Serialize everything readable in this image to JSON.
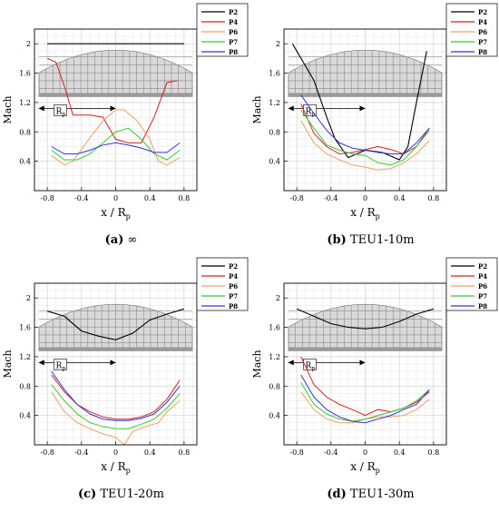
{
  "figure": {
    "panels": [
      {
        "tag": "(a)",
        "label": "∞"
      },
      {
        "tag": "(b)",
        "label": "TEU1-10m"
      },
      {
        "tag": "(c)",
        "label": "TEU1-20m"
      },
      {
        "tag": "(d)",
        "label": "TEU1-30m"
      }
    ],
    "ylabel": "Mach",
    "xlabel_main": "x / R",
    "xlabel_sub": "p",
    "rp_main": "R",
    "rp_sub": "p",
    "xticks": [
      "-0.8",
      "-0.4",
      "0",
      "0.4",
      "0.8"
    ],
    "yticks": [
      "0.4",
      "0.8",
      "1.2",
      "1.6",
      "2"
    ]
  },
  "colors": {
    "P2": "#000000",
    "P4": "#d62020",
    "P6": "#f2a060",
    "P7": "#33cc33",
    "P8": "#3333dd"
  },
  "chart_data": [
    {
      "type": "line",
      "title": "(a) ∞",
      "xlabel": "x / Rp",
      "ylabel": "Mach",
      "xlim": [
        -0.95,
        0.95
      ],
      "ylim": [
        0,
        2.2
      ],
      "legend": "top-right",
      "series": [
        {
          "name": "P2",
          "x": [
            -0.8,
            0.8
          ],
          "y": [
            2.0,
            2.0
          ]
        },
        {
          "name": "P4",
          "x": [
            -0.8,
            -0.7,
            -0.6,
            -0.5,
            -0.3,
            -0.15,
            0,
            0.15,
            0.3,
            0.45,
            0.6,
            0.72
          ],
          "y": [
            1.8,
            1.75,
            1.42,
            1.03,
            1.03,
            1.0,
            0.7,
            0.65,
            0.65,
            1.0,
            1.47,
            1.5
          ]
        },
        {
          "name": "P6",
          "x": [
            -0.75,
            -0.6,
            -0.5,
            -0.3,
            -0.15,
            0,
            0.1,
            0.25,
            0.4,
            0.5,
            0.6,
            0.75
          ],
          "y": [
            0.48,
            0.35,
            0.4,
            0.72,
            0.95,
            1.1,
            1.1,
            0.95,
            0.7,
            0.4,
            0.35,
            0.45
          ]
        },
        {
          "name": "P7",
          "x": [
            -0.75,
            -0.6,
            -0.45,
            -0.3,
            -0.15,
            0,
            0.15,
            0.3,
            0.45,
            0.6,
            0.75
          ],
          "y": [
            0.55,
            0.42,
            0.42,
            0.5,
            0.65,
            0.8,
            0.85,
            0.7,
            0.5,
            0.42,
            0.55
          ]
        },
        {
          "name": "P8",
          "x": [
            -0.75,
            -0.6,
            -0.45,
            -0.3,
            -0.15,
            0,
            0.15,
            0.3,
            0.45,
            0.6,
            0.75
          ],
          "y": [
            0.6,
            0.5,
            0.5,
            0.55,
            0.62,
            0.65,
            0.62,
            0.58,
            0.52,
            0.52,
            0.65
          ]
        }
      ]
    },
    {
      "type": "line",
      "title": "(b) TEU1-10m",
      "xlabel": "x / Rp",
      "ylabel": "Mach",
      "xlim": [
        -0.95,
        0.95
      ],
      "ylim": [
        0,
        2.2
      ],
      "legend": "top-right",
      "series": [
        {
          "name": "P2",
          "x": [
            -0.85,
            -0.6,
            -0.45,
            -0.35,
            -0.2,
            0,
            0.2,
            0.4,
            0.5,
            0.6,
            0.72
          ],
          "y": [
            2.0,
            1.5,
            1.0,
            0.7,
            0.45,
            0.55,
            0.52,
            0.42,
            0.6,
            1.2,
            1.9
          ]
        },
        {
          "name": "P4",
          "x": [
            -0.75,
            -0.6,
            -0.45,
            -0.3,
            -0.15,
            0,
            0.15,
            0.3,
            0.45,
            0.6,
            0.75
          ],
          "y": [
            1.18,
            0.78,
            0.6,
            0.5,
            0.52,
            0.56,
            0.6,
            0.56,
            0.5,
            0.6,
            0.85
          ]
        },
        {
          "name": "P6",
          "x": [
            -0.75,
            -0.6,
            -0.45,
            -0.3,
            -0.15,
            0,
            0.15,
            0.3,
            0.45,
            0.6,
            0.75
          ],
          "y": [
            0.95,
            0.65,
            0.5,
            0.42,
            0.35,
            0.32,
            0.28,
            0.3,
            0.38,
            0.5,
            0.68
          ]
        },
        {
          "name": "P7",
          "x": [
            -0.75,
            -0.6,
            -0.45,
            -0.3,
            -0.15,
            0,
            0.15,
            0.3,
            0.45,
            0.6,
            0.75
          ],
          "y": [
            1.1,
            0.85,
            0.62,
            0.55,
            0.5,
            0.48,
            0.38,
            0.35,
            0.42,
            0.6,
            0.82
          ]
        },
        {
          "name": "P8",
          "x": [
            -0.75,
            -0.6,
            -0.45,
            -0.3,
            -0.15,
            0,
            0.15,
            0.3,
            0.45,
            0.6,
            0.75
          ],
          "y": [
            1.3,
            1.05,
            0.82,
            0.65,
            0.58,
            0.55,
            0.52,
            0.5,
            0.5,
            0.65,
            0.85
          ]
        }
      ]
    },
    {
      "type": "line",
      "title": "(c) TEU1-20m",
      "xlabel": "x / Rp",
      "ylabel": "Mach",
      "xlim": [
        -0.95,
        0.95
      ],
      "ylim": [
        0,
        2.2
      ],
      "legend": "top-right",
      "series": [
        {
          "name": "P2",
          "x": [
            -0.8,
            -0.6,
            -0.4,
            -0.2,
            0,
            0.2,
            0.4,
            0.6,
            0.8
          ],
          "y": [
            1.82,
            1.75,
            1.55,
            1.48,
            1.43,
            1.52,
            1.7,
            1.78,
            1.85
          ]
        },
        {
          "name": "P4",
          "x": [
            -0.75,
            -0.6,
            -0.45,
            -0.3,
            -0.15,
            0,
            0.15,
            0.3,
            0.45,
            0.6,
            0.75
          ],
          "y": [
            0.95,
            0.72,
            0.55,
            0.45,
            0.38,
            0.35,
            0.35,
            0.38,
            0.45,
            0.62,
            0.88
          ]
        },
        {
          "name": "P6",
          "x": [
            -0.75,
            -0.6,
            -0.45,
            -0.3,
            -0.15,
            0,
            0.1,
            0.2,
            0.35,
            0.5,
            0.6,
            0.75
          ],
          "y": [
            0.72,
            0.45,
            0.3,
            0.22,
            0.15,
            0.1,
            0.0,
            0.18,
            0.25,
            0.3,
            0.45,
            0.6
          ]
        },
        {
          "name": "P7",
          "x": [
            -0.75,
            -0.6,
            -0.45,
            -0.3,
            -0.15,
            0,
            0.15,
            0.3,
            0.45,
            0.6,
            0.75
          ],
          "y": [
            0.82,
            0.6,
            0.42,
            0.3,
            0.25,
            0.22,
            0.22,
            0.28,
            0.35,
            0.5,
            0.7
          ]
        },
        {
          "name": "P8",
          "x": [
            -0.75,
            -0.6,
            -0.45,
            -0.3,
            -0.15,
            0,
            0.15,
            0.3,
            0.45,
            0.6,
            0.75
          ],
          "y": [
            1.0,
            0.75,
            0.55,
            0.42,
            0.35,
            0.33,
            0.33,
            0.36,
            0.42,
            0.58,
            0.8
          ]
        }
      ]
    },
    {
      "type": "line",
      "title": "(d) TEU1-30m",
      "xlabel": "x / Rp",
      "ylabel": "Mach",
      "xlim": [
        -0.95,
        0.95
      ],
      "ylim": [
        0,
        2.2
      ],
      "legend": "top-right",
      "series": [
        {
          "name": "P2",
          "x": [
            -0.8,
            -0.6,
            -0.4,
            -0.2,
            0,
            0.2,
            0.4,
            0.6,
            0.8
          ],
          "y": [
            1.85,
            1.75,
            1.65,
            1.6,
            1.58,
            1.6,
            1.68,
            1.78,
            1.85
          ]
        },
        {
          "name": "P4",
          "x": [
            -0.75,
            -0.6,
            -0.45,
            -0.3,
            -0.15,
            0,
            0.15,
            0.3,
            0.45,
            0.6,
            0.75
          ],
          "y": [
            1.2,
            0.82,
            0.65,
            0.55,
            0.48,
            0.4,
            0.48,
            0.45,
            0.5,
            0.58,
            0.72
          ]
        },
        {
          "name": "P6",
          "x": [
            -0.75,
            -0.6,
            -0.45,
            -0.3,
            -0.15,
            0,
            0.15,
            0.3,
            0.45,
            0.6,
            0.75
          ],
          "y": [
            0.72,
            0.48,
            0.35,
            0.3,
            0.3,
            0.35,
            0.38,
            0.38,
            0.4,
            0.48,
            0.62
          ]
        },
        {
          "name": "P7",
          "x": [
            -0.75,
            -0.6,
            -0.45,
            -0.3,
            -0.15,
            0,
            0.15,
            0.3,
            0.45,
            0.6,
            0.75
          ],
          "y": [
            0.85,
            0.55,
            0.42,
            0.35,
            0.32,
            0.35,
            0.4,
            0.45,
            0.5,
            0.6,
            0.75
          ]
        },
        {
          "name": "P8",
          "x": [
            -0.75,
            -0.6,
            -0.45,
            -0.3,
            -0.15,
            0,
            0.15,
            0.3,
            0.45,
            0.6,
            0.75
          ],
          "y": [
            0.95,
            0.65,
            0.48,
            0.38,
            0.32,
            0.3,
            0.35,
            0.4,
            0.48,
            0.55,
            0.75
          ]
        }
      ]
    }
  ]
}
